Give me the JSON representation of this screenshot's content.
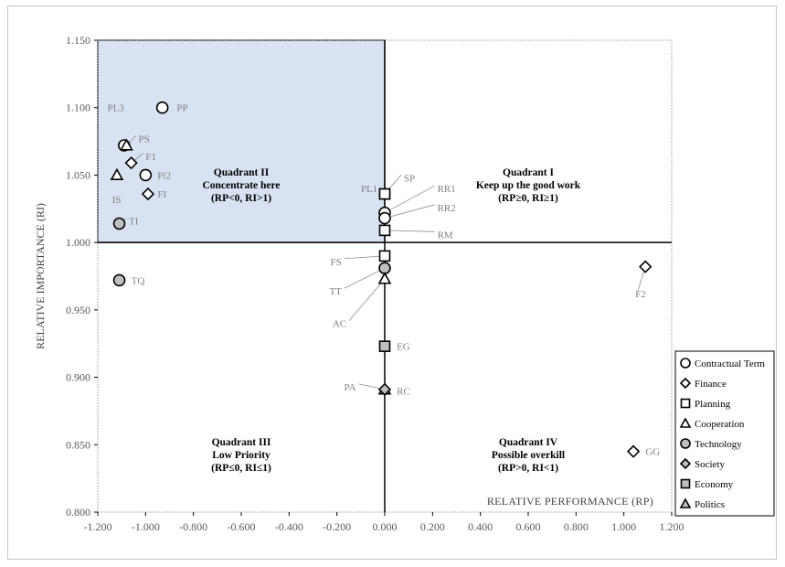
{
  "chart_data": {
    "type": "scatter",
    "xlabel": "RELATIVE PERFORMANCE (RP)",
    "ylabel": "RELATIVE IMPORTANCE (RI)",
    "xlim": [
      -1.2,
      1.2
    ],
    "ylim": [
      0.8,
      1.15
    ],
    "x_ticks": [
      "-1.200",
      "-1.000",
      "-0.800",
      "-0.600",
      "-0.400",
      "-0.200",
      "0.000",
      "0.200",
      "0.400",
      "0.600",
      "0.800",
      "1.000",
      "1.200"
    ],
    "y_ticks": [
      "0.800",
      "0.850",
      "0.900",
      "0.950",
      "1.000",
      "1.050",
      "1.100",
      "1.150"
    ],
    "quadrants": [
      {
        "name": "Quadrant I",
        "line2": "Keep up the good work",
        "line3": "(RP≥0, RI≥1)",
        "x": 0.6,
        "y": 1.04
      },
      {
        "name": "Quadrant II",
        "line2": "Concentrate here",
        "line3": "(RP<0, RI>1)",
        "x": -0.6,
        "y": 1.04
      },
      {
        "name": "Quadrant III",
        "line2": "Low Priority",
        "line3": "(RP≤0, RI≤1)",
        "x": -0.6,
        "y": 0.84
      },
      {
        "name": "Quadrant IV",
        "line2": "Possible overkill",
        "line3": "(RP>0, RI<1)",
        "x": 0.6,
        "y": 0.84
      }
    ],
    "highlight_color": "#d9e2f3",
    "legend_position": "right",
    "legend": [
      {
        "label": "Contractual Term",
        "shape": "circle",
        "fill": "#ffffff"
      },
      {
        "label": "Finance",
        "shape": "diamond",
        "fill": "#ffffff"
      },
      {
        "label": "Planning",
        "shape": "square",
        "fill": "#ffffff"
      },
      {
        "label": "Cooperation",
        "shape": "triangle",
        "fill": "#ffffff"
      },
      {
        "label": "Technology",
        "shape": "circle",
        "fill": "#bfbfbf"
      },
      {
        "label": "Society",
        "shape": "diamond",
        "fill": "#bfbfbf"
      },
      {
        "label": "Economy",
        "shape": "square",
        "fill": "#bfbfbf"
      },
      {
        "label": "Politics",
        "shape": "triangle",
        "fill": "#bfbfbf"
      }
    ],
    "points": [
      {
        "label": "PP",
        "x": -0.93,
        "y": 1.1,
        "shape": "circle",
        "fill": "#ffffff",
        "lx": -0.87,
        "ly": 1.1,
        "anchor": "start"
      },
      {
        "label": "PL3",
        "x": -1.09,
        "y": 1.072,
        "shape": "circle",
        "fill": "#ffffff",
        "lx": -1.16,
        "ly": 1.1,
        "anchor": "start"
      },
      {
        "label": "PS",
        "x": -1.08,
        "y": 1.072,
        "shape": "triangle",
        "fill": "#ffffff",
        "lx": -1.03,
        "ly": 1.077,
        "anchor": "start",
        "leader": true
      },
      {
        "label": "F1",
        "x": -1.06,
        "y": 1.059,
        "shape": "diamond",
        "fill": "#ffffff",
        "lx": -1.0,
        "ly": 1.064,
        "anchor": "start",
        "leader": true
      },
      {
        "label": "Pl2",
        "x": -1.0,
        "y": 1.05,
        "shape": "circle",
        "fill": "#ffffff",
        "lx": -0.95,
        "ly": 1.05,
        "anchor": "start"
      },
      {
        "label": "IS",
        "x": -1.12,
        "y": 1.05,
        "shape": "triangle",
        "fill": "#ffffff",
        "lx": -1.14,
        "ly": 1.032,
        "anchor": "start"
      },
      {
        "label": "FI",
        "x": -0.99,
        "y": 1.036,
        "shape": "diamond",
        "fill": "#ffffff",
        "lx": -0.95,
        "ly": 1.036,
        "anchor": "start"
      },
      {
        "label": "TI",
        "x": -1.11,
        "y": 1.014,
        "shape": "circle",
        "fill": "#bfbfbf",
        "lx": -1.07,
        "ly": 1.016,
        "anchor": "start",
        "leader": true
      },
      {
        "label": "TQ",
        "x": -1.11,
        "y": 0.972,
        "shape": "circle",
        "fill": "#bfbfbf",
        "lx": -1.06,
        "ly": 0.972,
        "anchor": "start"
      },
      {
        "label": "PL1",
        "x": 0.0,
        "y": 1.036,
        "shape": "square",
        "fill": "#ffffff",
        "lx": -0.1,
        "ly": 1.04,
        "anchor": "start"
      },
      {
        "label": "SP",
        "x": 0.0,
        "y": 1.036,
        "shape": "square",
        "fill": "#ffffff",
        "lx": 0.08,
        "ly": 1.048,
        "anchor": "start",
        "leader": true
      },
      {
        "label": "RR1",
        "x": 0.0,
        "y": 1.022,
        "shape": "circle",
        "fill": "#ffffff",
        "lx": 0.22,
        "ly": 1.04,
        "anchor": "start",
        "leader": true
      },
      {
        "label": "RR2",
        "x": 0.0,
        "y": 1.018,
        "shape": "circle",
        "fill": "#ffffff",
        "lx": 0.22,
        "ly": 1.026,
        "anchor": "start",
        "leader": true
      },
      {
        "label": "RM",
        "x": 0.0,
        "y": 1.009,
        "shape": "square",
        "fill": "#ffffff",
        "lx": 0.22,
        "ly": 1.006,
        "anchor": "start",
        "leader": true
      },
      {
        "label": "FS",
        "x": 0.0,
        "y": 0.99,
        "shape": "square",
        "fill": "#ffffff",
        "lx": -0.18,
        "ly": 0.986,
        "anchor": "end",
        "leader": true
      },
      {
        "label": "TT",
        "x": 0.0,
        "y": 0.981,
        "shape": "circle",
        "fill": "#bfbfbf",
        "lx": -0.18,
        "ly": 0.964,
        "anchor": "end",
        "leader": true
      },
      {
        "label": "AC",
        "x": 0.0,
        "y": 0.973,
        "shape": "triangle",
        "fill": "#ffffff",
        "lx": -0.16,
        "ly": 0.94,
        "anchor": "end",
        "leader": true
      },
      {
        "label": "EG",
        "x": 0.0,
        "y": 0.923,
        "shape": "square",
        "fill": "#bfbfbf",
        "lx": 0.05,
        "ly": 0.923,
        "anchor": "start"
      },
      {
        "label": "PA",
        "x": 0.0,
        "y": 0.891,
        "shape": "triangle",
        "fill": "#bfbfbf",
        "lx": -0.12,
        "ly": 0.893,
        "anchor": "end",
        "leader": true
      },
      {
        "label": "RC",
        "x": 0.0,
        "y": 0.891,
        "shape": "diamond",
        "fill": "#bfbfbf",
        "lx": 0.05,
        "ly": 0.89,
        "anchor": "start"
      },
      {
        "label": "F2",
        "x": 1.09,
        "y": 0.982,
        "shape": "diamond",
        "fill": "#ffffff",
        "lx": 1.07,
        "ly": 0.962,
        "anchor": "middle",
        "leader": true
      },
      {
        "label": "GG",
        "x": 1.04,
        "y": 0.845,
        "shape": "diamond",
        "fill": "#ffffff",
        "lx": 1.09,
        "ly": 0.845,
        "anchor": "start"
      }
    ]
  }
}
